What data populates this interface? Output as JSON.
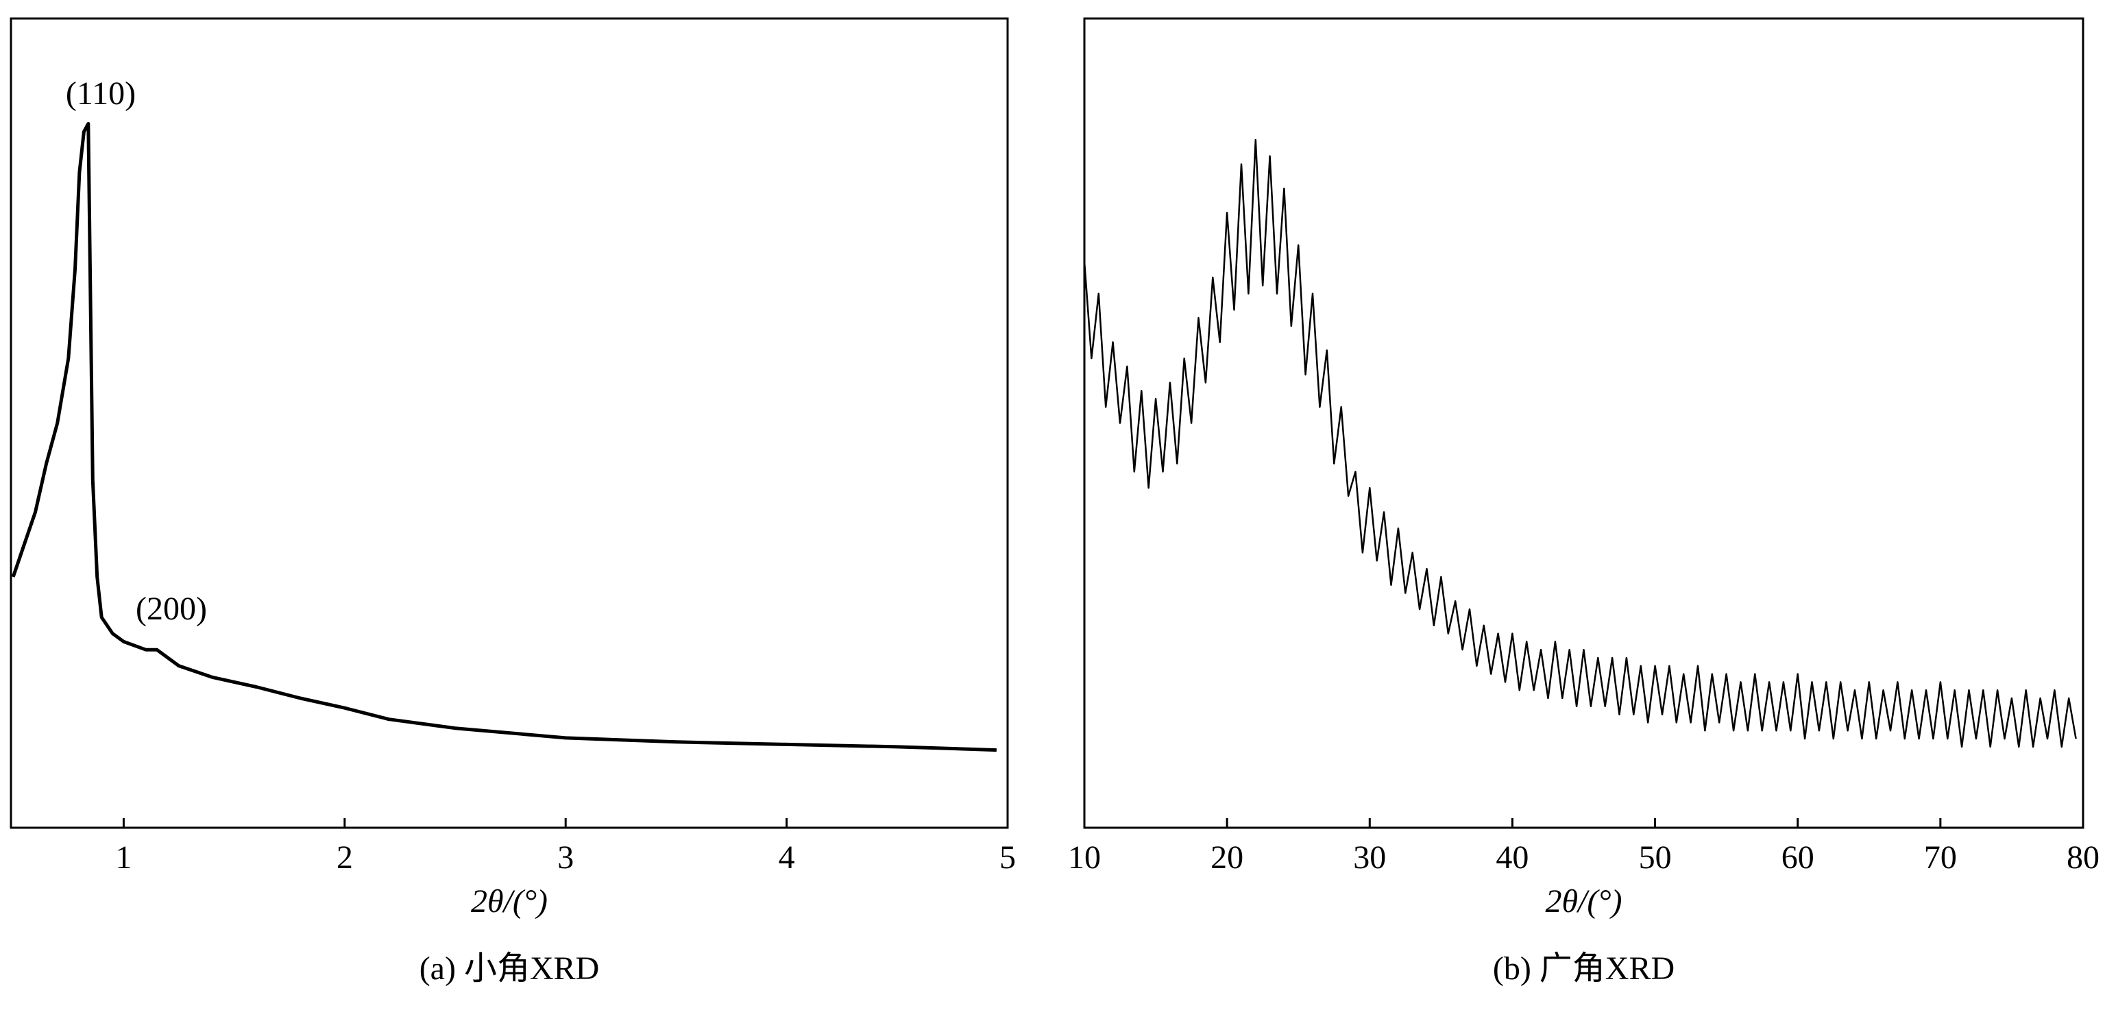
{
  "chart_data": [
    {
      "type": "line",
      "caption": "(a) 小角XRD",
      "xlabel": "2θ/(°)",
      "annotations": [
        "(110)",
        "(200)"
      ],
      "x": [
        0.5,
        0.55,
        0.6,
        0.65,
        0.7,
        0.75,
        0.78,
        0.8,
        0.82,
        0.84,
        0.86,
        0.88,
        0.9,
        0.95,
        1.0,
        1.1,
        1.15,
        1.25,
        1.4,
        1.6,
        1.8,
        2.0,
        2.2,
        2.5,
        3.0,
        3.5,
        4.0,
        4.5,
        4.95
      ],
      "series": [
        {
          "color": "#000000",
          "values": [
            31,
            35,
            39,
            45,
            50,
            58,
            69,
            81,
            86,
            87,
            43,
            31,
            26,
            24,
            23,
            22,
            22,
            20,
            18.6,
            17.4,
            16,
            14.8,
            13.4,
            12.3,
            11.1,
            10.6,
            10.3,
            10,
            9.6
          ]
        }
      ],
      "xlim": [
        0.49,
        5
      ],
      "ylim": [
        0,
        100
      ],
      "xticks": [
        1,
        2,
        3,
        4,
        5
      ]
    },
    {
      "type": "line",
      "caption": "(b) 广角XRD",
      "xlabel": "2θ/(°)",
      "x": [
        10,
        10.5,
        11,
        11.5,
        12,
        12.5,
        13,
        13.5,
        14,
        14.5,
        15,
        15.5,
        16,
        16.5,
        17,
        17.5,
        18,
        18.5,
        19,
        19.5,
        20,
        20.5,
        21,
        21.5,
        22,
        22.5,
        23,
        23.5,
        24,
        24.5,
        25,
        25.5,
        26,
        26.5,
        27,
        27.5,
        28,
        28.5,
        29,
        29.5,
        30,
        30.5,
        31,
        31.5,
        32,
        32.5,
        33,
        33.5,
        34,
        34.5,
        35,
        35.5,
        36,
        36.5,
        37,
        37.5,
        38,
        38.5,
        39,
        39.5,
        40,
        40.5,
        41,
        41.5,
        42,
        42.5,
        43,
        43.5,
        44,
        44.5,
        45,
        45.5,
        46,
        46.5,
        47,
        47.5,
        48,
        48.5,
        49,
        49.5,
        50,
        50.5,
        51,
        51.5,
        52,
        52.5,
        53,
        53.5,
        54,
        54.5,
        55,
        55.5,
        56,
        56.5,
        57,
        57.5,
        58,
        58.5,
        59,
        59.5,
        60,
        60.5,
        61,
        61.5,
        62,
        62.5,
        63,
        63.5,
        64,
        64.5,
        65,
        65.5,
        66,
        66.5,
        67,
        67.5,
        68,
        68.5,
        69,
        69.5,
        70,
        70.5,
        71,
        71.5,
        72,
        72.5,
        73,
        73.5,
        74,
        74.5,
        75,
        75.5,
        76,
        76.5,
        77,
        77.5,
        78,
        78.5,
        79,
        79.5
      ],
      "series": [
        {
          "color": "#000000",
          "values": [
            70,
            58,
            66,
            52,
            60,
            50,
            57,
            44,
            54,
            42,
            53,
            44,
            55,
            45,
            58,
            50,
            63,
            55,
            68,
            60,
            76,
            64,
            82,
            66,
            85,
            67,
            83,
            66,
            79,
            62,
            72,
            56,
            66,
            52,
            59,
            45,
            52,
            41,
            44,
            34,
            42,
            33,
            39,
            30,
            37,
            29,
            34,
            27,
            32,
            25,
            31,
            24,
            28,
            22,
            27,
            20,
            25,
            19,
            24,
            18,
            24,
            17,
            23,
            17,
            22,
            16,
            23,
            16,
            22,
            15,
            22,
            15,
            21,
            15,
            21,
            14,
            21,
            14,
            20,
            13,
            20,
            14,
            20,
            13,
            19,
            13,
            20,
            12,
            19,
            13,
            19,
            12,
            18,
            12,
            19,
            12,
            18,
            12,
            18,
            12,
            19,
            11,
            18,
            12,
            18,
            11,
            18,
            12,
            17,
            11,
            18,
            11,
            17,
            12,
            18,
            11,
            17,
            11,
            17,
            11,
            18,
            11,
            17,
            10,
            17,
            11,
            17,
            10,
            17,
            11,
            16,
            10,
            17,
            10,
            16,
            11,
            17,
            10,
            16,
            11
          ]
        }
      ],
      "xlim": [
        10,
        80
      ],
      "ylim": [
        0,
        100
      ],
      "xticks": [
        10,
        20,
        30,
        40,
        50,
        60,
        70,
        80
      ]
    }
  ]
}
